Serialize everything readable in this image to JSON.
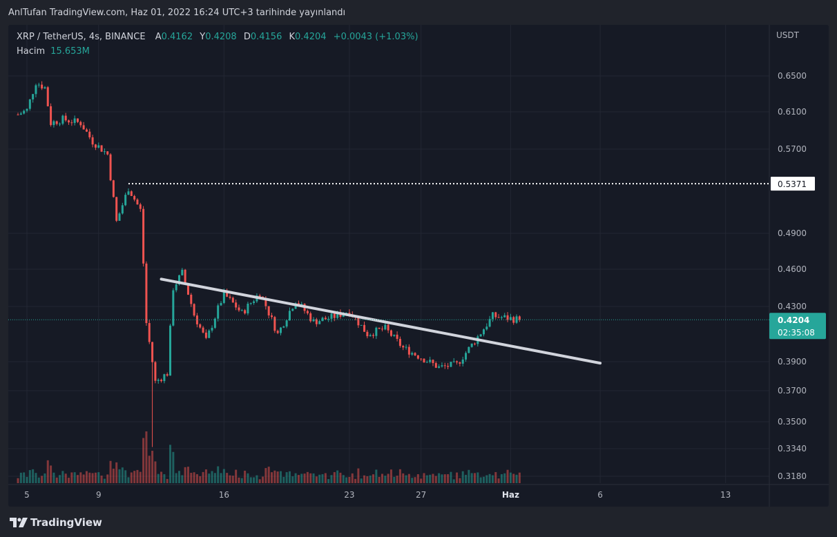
{
  "header": {
    "publish_text": "AnlTufan TradingView.com, Haz 01, 2022 16:24 UTC+3 tarihinde yayınlandı"
  },
  "legend": {
    "symbol": "XRP / TetherUS, 4s, BINANCE",
    "open_label": "A",
    "open_value": "0.4162",
    "high_label": "Y",
    "high_value": "0.4208",
    "low_label": "D",
    "low_value": "0.4156",
    "close_label": "K",
    "close_value": "0.4204",
    "change": "+0.0043 (+1.03%)",
    "volume_label": "Hacim",
    "volume_value": "15.653M"
  },
  "axis": {
    "unit": "USDT"
  },
  "branding": {
    "name": "TradingView"
  },
  "colors": {
    "up": "#26a69a",
    "down": "#ef5350",
    "background": "#161a25",
    "trendline": "#d1d4dc",
    "last_price_badge": "#26a69a"
  },
  "chart_data": {
    "type": "candlestick",
    "symbol": "XRP/USDT",
    "interval": "4h",
    "exchange": "BINANCE",
    "y_ticks": [
      0.65,
      0.61,
      0.57,
      0.49,
      0.46,
      0.43,
      0.39,
      0.37,
      0.35,
      0.334,
      0.318
    ],
    "y_tick_labels": [
      "0.6500",
      "0.6100",
      "0.5700",
      "0.4900",
      "0.4600",
      "0.4300",
      "0.3900",
      "0.3700",
      "0.3500",
      "0.3340",
      "0.3180"
    ],
    "x_tick_labels": [
      "5",
      "9",
      "16",
      "23",
      "27",
      "Haz",
      "6",
      "13"
    ],
    "x_tick_dates": [
      "2022-05-05",
      "2022-05-09",
      "2022-05-16",
      "2022-05-23",
      "2022-05-27",
      "2022-06-01",
      "2022-06-06",
      "2022-06-13"
    ],
    "bold_x_tick": "Haz",
    "first_candle": "2022-05-04T12:00",
    "candle_interval_hours": 4,
    "ohlc_keypoints": [
      {
        "t": "2022-05-04T12:00",
        "close": 0.607
      },
      {
        "t": "2022-05-05T00:00",
        "close": 0.612
      },
      {
        "t": "2022-05-05T12:00",
        "close": 0.643
      },
      {
        "t": "2022-05-06T00:00",
        "close": 0.637
      },
      {
        "t": "2022-05-06T08:00",
        "close": 0.598
      },
      {
        "t": "2022-05-07T00:00",
        "close": 0.602
      },
      {
        "t": "2022-05-08T00:00",
        "close": 0.598
      },
      {
        "t": "2022-05-08T16:00",
        "close": 0.578
      },
      {
        "t": "2022-05-09T12:00",
        "close": 0.565
      },
      {
        "t": "2022-05-10T00:00",
        "close": 0.501
      },
      {
        "t": "2022-05-10T16:00",
        "close": 0.533
      },
      {
        "t": "2022-05-11T08:00",
        "close": 0.512
      },
      {
        "t": "2022-05-11T16:00",
        "close": 0.418
      },
      {
        "t": "2022-05-12T04:00",
        "close": 0.376
      },
      {
        "t": "2022-05-12T20:00",
        "close": 0.382
      },
      {
        "t": "2022-05-13T04:00",
        "close": 0.445
      },
      {
        "t": "2022-05-13T16:00",
        "close": 0.457
      },
      {
        "t": "2022-05-14T08:00",
        "close": 0.424
      },
      {
        "t": "2022-05-15T00:00",
        "close": 0.405
      },
      {
        "t": "2022-05-16T00:00",
        "close": 0.44
      },
      {
        "t": "2022-05-17T00:00",
        "close": 0.425
      },
      {
        "t": "2022-05-18T00:00",
        "close": 0.441
      },
      {
        "t": "2022-05-19T00:00",
        "close": 0.41
      },
      {
        "t": "2022-05-20T00:00",
        "close": 0.435
      },
      {
        "t": "2022-05-21T00:00",
        "close": 0.419
      },
      {
        "t": "2022-05-22T00:00",
        "close": 0.422
      },
      {
        "t": "2022-05-23T00:00",
        "close": 0.427
      },
      {
        "t": "2022-05-24T00:00",
        "close": 0.41
      },
      {
        "t": "2022-05-25T00:00",
        "close": 0.414
      },
      {
        "t": "2022-05-26T00:00",
        "close": 0.4
      },
      {
        "t": "2022-05-27T00:00",
        "close": 0.393
      },
      {
        "t": "2022-05-28T00:00",
        "close": 0.386
      },
      {
        "t": "2022-05-29T00:00",
        "close": 0.388
      },
      {
        "t": "2022-05-30T00:00",
        "close": 0.405
      },
      {
        "t": "2022-05-31T00:00",
        "close": 0.423
      },
      {
        "t": "2022-06-01T12:00",
        "close": 0.4204
      }
    ],
    "volume_last": 15.653,
    "volume_unit": "M",
    "annotations": [
      {
        "kind": "horizontal_dotted_line",
        "from": "2022-05-10T16:00",
        "price": 0.5371,
        "label": "0.5371"
      },
      {
        "kind": "trend_line",
        "start": {
          "t": "2022-05-12T12:00",
          "price": 0.452
        },
        "end": {
          "t": "2022-06-06T00:00",
          "price": 0.389
        }
      },
      {
        "kind": "last_price",
        "price": 0.4204,
        "label": "0.4204",
        "countdown": "02:35:08"
      }
    ]
  }
}
